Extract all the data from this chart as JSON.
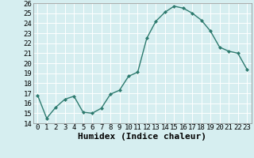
{
  "x": [
    0,
    1,
    2,
    3,
    4,
    5,
    6,
    7,
    8,
    9,
    10,
    11,
    12,
    13,
    14,
    15,
    16,
    17,
    18,
    19,
    20,
    21,
    22,
    23
  ],
  "y": [
    16.8,
    14.5,
    15.6,
    16.4,
    16.7,
    15.1,
    15.0,
    15.5,
    16.9,
    17.3,
    18.7,
    19.1,
    22.5,
    24.2,
    25.1,
    25.7,
    25.5,
    25.0,
    24.3,
    23.2,
    21.6,
    21.2,
    21.0,
    19.4
  ],
  "xlabel": "Humidex (Indice chaleur)",
  "ylim": [
    14,
    26
  ],
  "xlim": [
    -0.5,
    23.5
  ],
  "yticks": [
    14,
    15,
    16,
    17,
    18,
    19,
    20,
    21,
    22,
    23,
    24,
    25,
    26
  ],
  "xticks": [
    0,
    1,
    2,
    3,
    4,
    5,
    6,
    7,
    8,
    9,
    10,
    11,
    12,
    13,
    14,
    15,
    16,
    17,
    18,
    19,
    20,
    21,
    22,
    23
  ],
  "xtick_labels": [
    "0",
    "1",
    "2",
    "3",
    "4",
    "5",
    "6",
    "7",
    "8",
    "9",
    "10",
    "11",
    "12",
    "13",
    "14",
    "15",
    "16",
    "17",
    "18",
    "19",
    "20",
    "21",
    "22",
    "23"
  ],
  "line_color": "#2d7a6e",
  "marker": "D",
  "marker_size": 2.0,
  "bg_color": "#d6eef0",
  "grid_color": "#ffffff",
  "tick_fontsize": 6.5,
  "xlabel_fontsize": 8.0,
  "line_width": 1.0
}
